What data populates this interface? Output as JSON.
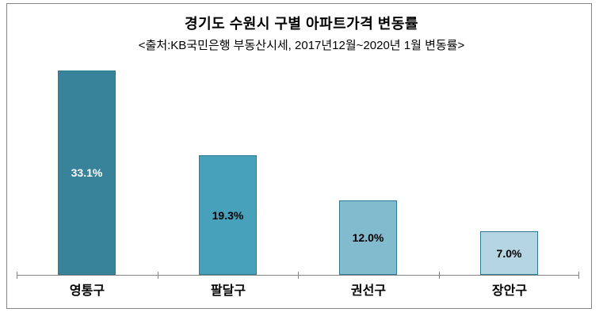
{
  "chart_data": {
    "type": "bar",
    "title": "경기도 수원시 구별 아파트가격 변동률",
    "subtitle": "<출처:KB국민은행 부동산시세, 2017년12월~2020년 1월 변동률>",
    "categories": [
      "영통구",
      "팔달구",
      "권선구",
      "장안구"
    ],
    "values": [
      33.1,
      19.3,
      12.0,
      7.0
    ],
    "data_labels": [
      "33.1%",
      "19.3%",
      "12.0%",
      "7.0%"
    ],
    "ylabel": "",
    "xlabel": "",
    "ylim": [
      0,
      35
    ],
    "grid": false,
    "legend": false,
    "bar_colors": [
      "#38839a",
      "#47a1ba",
      "#82bace",
      "#b5d5e3"
    ],
    "bar_border_color": "#2e7c91",
    "data_label_colors": [
      "#ffffff",
      "#000000",
      "#000000",
      "#000000"
    ],
    "axis_color": "#848484",
    "frame_color": "#848484",
    "background_color": "#ffffff"
  }
}
